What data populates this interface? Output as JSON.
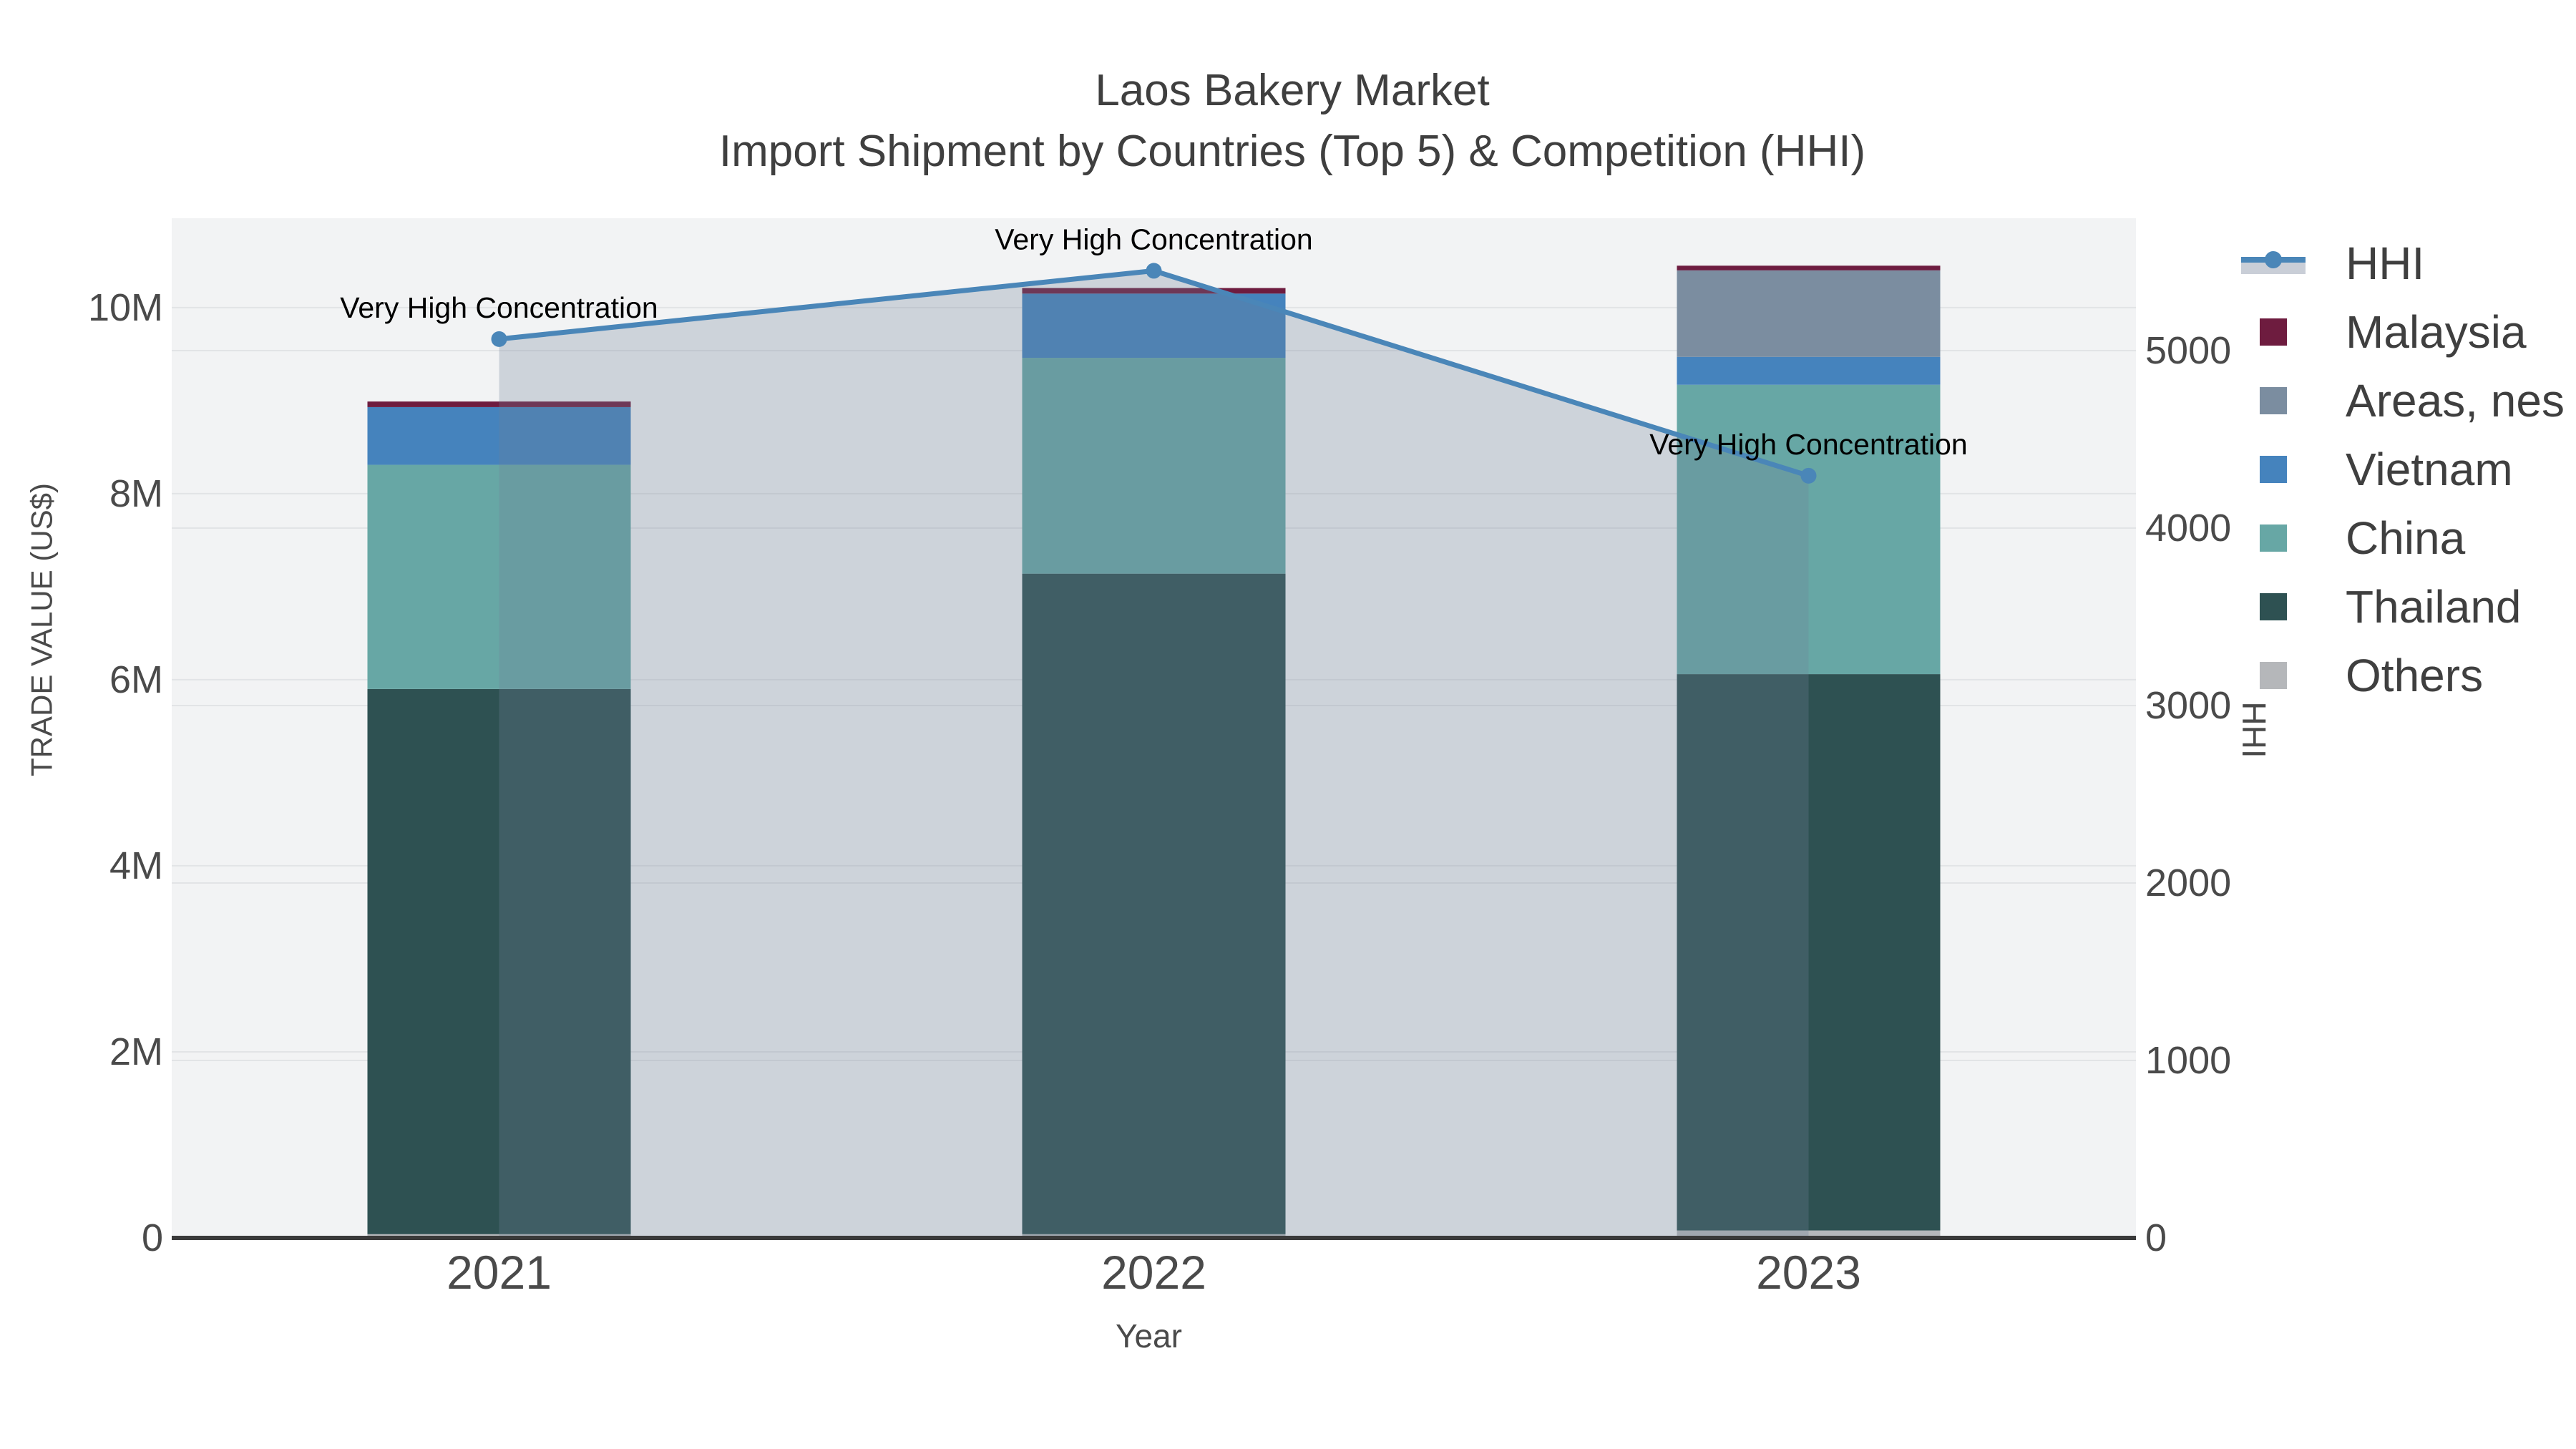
{
  "title": {
    "line1": "Laos Bakery Market",
    "line2": "Import Shipment by Countries (Top 5) & Competition (HHI)"
  },
  "axes": {
    "x": {
      "title": "Year",
      "categories": [
        "2021",
        "2022",
        "2023"
      ]
    },
    "y_left": {
      "title": "TRADE VALUE (US$)",
      "tick_labels": [
        "0",
        "2M",
        "4M",
        "6M",
        "8M",
        "10M"
      ],
      "tick_values": [
        0,
        2,
        4,
        6,
        8,
        10
      ],
      "range": [
        0,
        10.96
      ],
      "units": "millions US$"
    },
    "y_right": {
      "title": "HHI",
      "tick_labels": [
        "0",
        "1000",
        "2000",
        "3000",
        "4000",
        "5000"
      ],
      "tick_values": [
        0,
        1000,
        2000,
        3000,
        4000,
        5000
      ],
      "range": [
        0,
        5746
      ]
    }
  },
  "chart_data": {
    "type": "bar",
    "subtype": "stacked-bars-with-line-overlay",
    "categories": [
      "2021",
      "2022",
      "2023"
    ],
    "bar_value_units": "million US$",
    "series": [
      {
        "name": "Others",
        "type": "bar",
        "color": "#b5b7ba",
        "values": [
          0.04,
          0.04,
          0.08
        ]
      },
      {
        "name": "Thailand",
        "type": "bar",
        "color": "#2e5152",
        "values": [
          5.86,
          7.1,
          5.98
        ]
      },
      {
        "name": "China",
        "type": "bar",
        "color": "#67a7a5",
        "values": [
          2.41,
          2.32,
          3.11
        ]
      },
      {
        "name": "Vietnam",
        "type": "bar",
        "color": "#4583bd",
        "values": [
          0.62,
          0.69,
          0.3
        ]
      },
      {
        "name": "Areas, nes",
        "type": "bar",
        "color": "#7b8da0",
        "values": [
          0.0,
          0.0,
          0.93
        ]
      },
      {
        "name": "Malaysia",
        "type": "bar",
        "color": "#6e1c3f",
        "values": [
          0.06,
          0.06,
          0.05
        ]
      }
    ],
    "line_series": {
      "name": "HHI",
      "type": "line",
      "axis": "right",
      "color": "#4a86b8",
      "area_fill": "rgba(112,128,150,0.28)",
      "values": [
        5065,
        5450,
        4295
      ]
    },
    "totals_top5_plus_others": [
      8.99,
      10.21,
      10.45
    ],
    "grid": true,
    "legend_position": "right"
  },
  "annotations": [
    {
      "text": "Very High Concentration",
      "category": "2021"
    },
    {
      "text": "Very High Concentration",
      "category": "2022"
    },
    {
      "text": "Very High Concentration",
      "category": "2023"
    }
  ],
  "legend": {
    "items": [
      {
        "label": "HHI",
        "type": "line",
        "color": "#4a86b8",
        "area_color": "#c9ced7"
      },
      {
        "label": "Malaysia",
        "type": "swatch",
        "color": "#6e1c3f"
      },
      {
        "label": "Areas, nes",
        "type": "swatch",
        "color": "#7b8da0"
      },
      {
        "label": "Vietnam",
        "type": "swatch",
        "color": "#4583bd"
      },
      {
        "label": "China",
        "type": "swatch",
        "color": "#67a7a5"
      },
      {
        "label": "Thailand",
        "type": "swatch",
        "color": "#2e5152"
      },
      {
        "label": "Others",
        "type": "swatch",
        "color": "#b5b7ba"
      }
    ]
  },
  "colors": {
    "plot_background": "#f2f3f4",
    "gridline": "#e2e4e6",
    "axis_line": "#3a3a3a",
    "tick_text": "#4a4a4a",
    "title_text": "#3f3f3f",
    "annotation_text": "#000000"
  }
}
